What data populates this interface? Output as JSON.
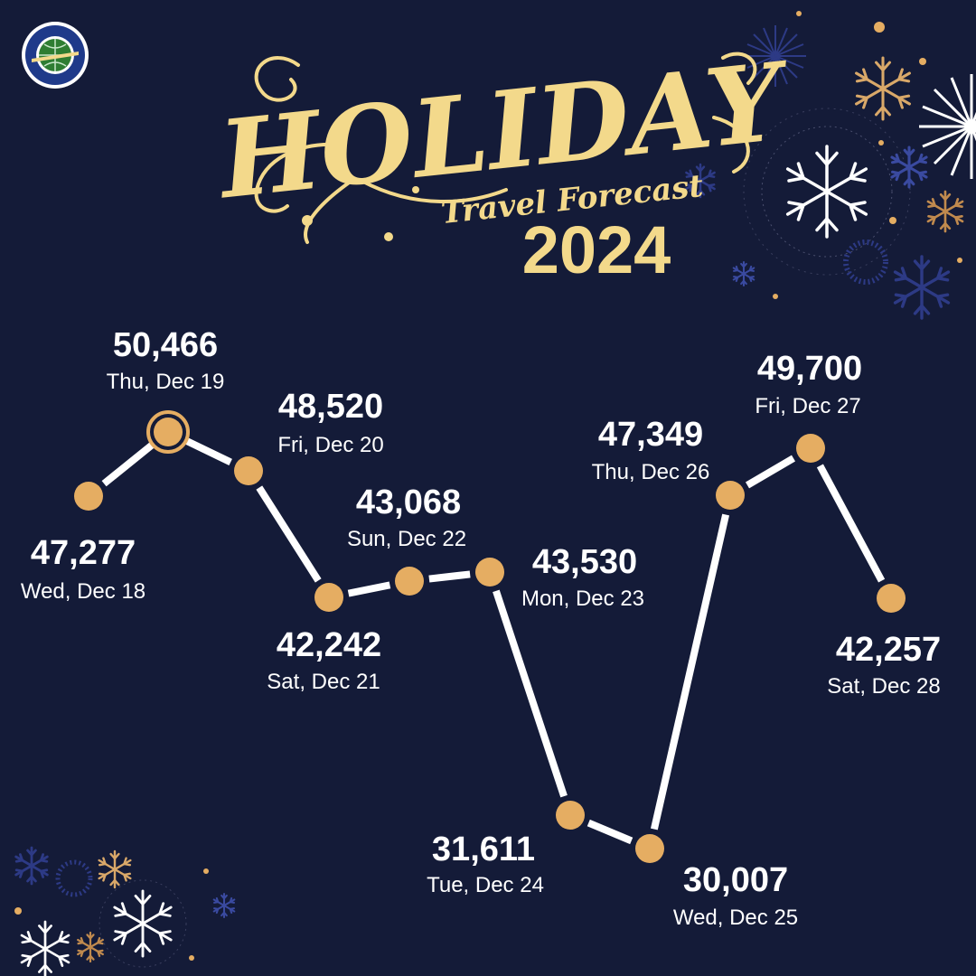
{
  "title": {
    "main": "HOLIDAY",
    "sub": "Travel Forecast",
    "year": "2024"
  },
  "colors": {
    "background": "#141b38",
    "gold": "#f3d98b",
    "point": "#e5ad62",
    "line": "#ffffff",
    "snow_blue": "#3a4aa0"
  },
  "icons": [
    "faa-logo-icon",
    "snowflake-icon",
    "firework-icon"
  ],
  "chart_data": {
    "type": "line",
    "highlight_index": 1,
    "points": [
      {
        "value": 47277,
        "value_label": "47,277",
        "date": "Wed, Dec 18"
      },
      {
        "value": 50466,
        "value_label": "50,466",
        "date": "Thu, Dec 19"
      },
      {
        "value": 48520,
        "value_label": "48,520",
        "date": "Fri, Dec 20"
      },
      {
        "value": 42242,
        "value_label": "42,242",
        "date": "Sat, Dec 21"
      },
      {
        "value": 43068,
        "value_label": "43,068",
        "date": "Sun, Dec 22"
      },
      {
        "value": 43530,
        "value_label": "43,530",
        "date": "Mon, Dec 23"
      },
      {
        "value": 31611,
        "value_label": "31,611",
        "date": "Tue, Dec 24"
      },
      {
        "value": 30007,
        "value_label": "30,007",
        "date": "Wed, Dec 25"
      },
      {
        "value": 47349,
        "value_label": "47,349",
        "date": "Thu, Dec 26"
      },
      {
        "value": 49700,
        "value_label": "49,700",
        "date": "Fri, Dec 27"
      },
      {
        "value": 42257,
        "value_label": "42,257",
        "date": "Sat, Dec 28"
      }
    ]
  }
}
